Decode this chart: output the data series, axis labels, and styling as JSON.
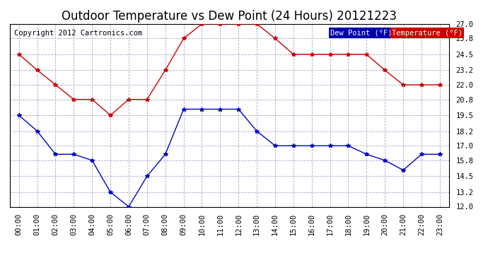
{
  "title": "Outdoor Temperature vs Dew Point (24 Hours) 20121223",
  "copyright": "Copyright 2012 Cartronics.com",
  "background_color": "#ffffff",
  "plot_bg_color": "#ffffff",
  "grid_color": "#aaaacc",
  "time_labels": [
    "00:00",
    "01:00",
    "02:00",
    "03:00",
    "04:00",
    "05:00",
    "06:00",
    "07:00",
    "08:00",
    "09:00",
    "10:00",
    "11:00",
    "12:00",
    "13:00",
    "14:00",
    "15:00",
    "16:00",
    "17:00",
    "18:00",
    "19:00",
    "20:00",
    "21:00",
    "22:00",
    "23:00"
  ],
  "temperature": [
    24.5,
    23.2,
    22.0,
    20.8,
    20.8,
    19.5,
    20.8,
    20.8,
    23.2,
    25.8,
    27.0,
    27.0,
    27.0,
    27.0,
    25.8,
    24.5,
    24.5,
    24.5,
    24.5,
    24.5,
    23.2,
    22.0,
    22.0,
    22.0
  ],
  "dew_point": [
    19.5,
    18.2,
    16.3,
    16.3,
    15.8,
    13.2,
    12.0,
    14.5,
    16.3,
    20.0,
    20.0,
    20.0,
    20.0,
    18.2,
    17.0,
    17.0,
    17.0,
    17.0,
    17.0,
    16.3,
    15.8,
    15.0,
    16.3,
    16.3
  ],
  "temp_color": "#cc0000",
  "dew_color": "#0000cc",
  "ylim_min": 12.0,
  "ylim_max": 27.0,
  "ytick_values": [
    12.0,
    13.2,
    14.5,
    15.8,
    17.0,
    18.2,
    19.5,
    20.8,
    22.0,
    23.2,
    24.5,
    25.8,
    27.0
  ],
  "ytick_labels": [
    "12.0",
    "13.2",
    "14.5",
    "15.8",
    "17.0",
    "18.2",
    "19.5",
    "20.8",
    "22.0",
    "23.2",
    "24.5",
    "25.8",
    "27.0"
  ],
  "legend_dew_label": "Dew Point (°F)",
  "legend_temp_label": "Temperature (°F)",
  "legend_dew_bg": "#0000aa",
  "legend_temp_bg": "#cc0000",
  "title_fontsize": 12,
  "tick_fontsize": 7.5,
  "copyright_fontsize": 7.5
}
